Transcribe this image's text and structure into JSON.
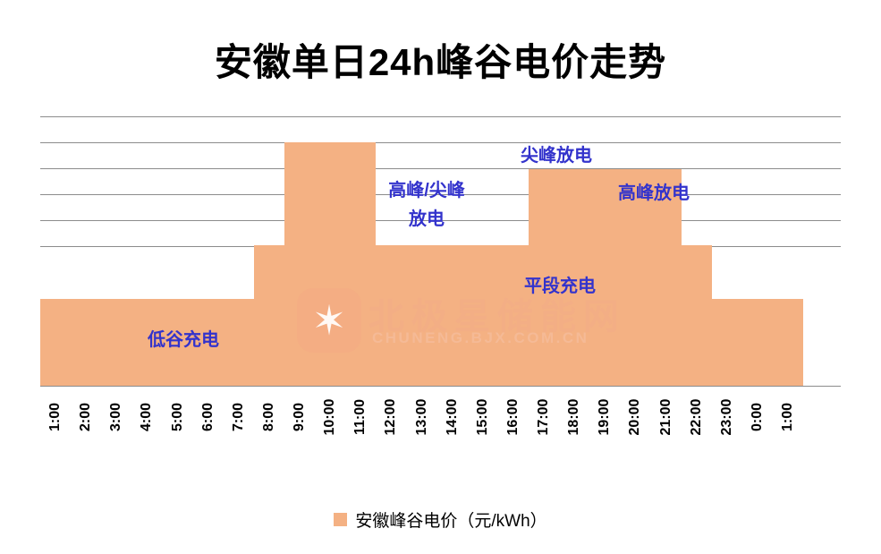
{
  "title": "安徽单日24h峰谷电价走势",
  "legend": {
    "label": "安徽峰谷电价（元/kWh）",
    "swatch_color": "#F4B183"
  },
  "watermark": {
    "name": "北极星储能网",
    "url": "CHUNENG.BJX.COM.CN",
    "star": "✶"
  },
  "annotations": {
    "valley": "低谷充电",
    "peak_sharp_line1": "高峰/尖峰",
    "peak_sharp_line2": "放电",
    "sharp": "尖峰放电",
    "peak": "高峰放电",
    "flat": "平段充电"
  },
  "chart_data": {
    "type": "bar",
    "title": "安徽单日24h峰谷电价走势",
    "series_name": "安徽峰谷电价（元/kWh）",
    "categories": [
      "1:00",
      "2:00",
      "3:00",
      "4:00",
      "5:00",
      "6:00",
      "7:00",
      "8:00",
      "9:00",
      "10:00",
      "11:00",
      "12:00",
      "13:00",
      "14:00",
      "15:00",
      "16:00",
      "17:00",
      "18:00",
      "19:00",
      "20:00",
      "21:00",
      "22:00",
      "23:00",
      "0:00",
      "1:00"
    ],
    "values": [
      0.36,
      0.36,
      0.36,
      0.36,
      0.36,
      0.36,
      0.36,
      0.58,
      1.0,
      1.0,
      1.0,
      0.58,
      0.58,
      0.58,
      0.58,
      0.58,
      0.89,
      0.89,
      0.89,
      0.89,
      0.89,
      0.58,
      0.36,
      0.36,
      0.36
    ],
    "xlabel": "",
    "ylabel": "",
    "ylim": [
      0,
      1.1
    ],
    "y_axis_labels_visible": false,
    "grid": true,
    "legend_position": "bottom",
    "bar_color": "#F4B183",
    "annotation_color": "#3333CC",
    "annotations": [
      {
        "text": "低谷充电",
        "period": "1:00-7:00"
      },
      {
        "text": "高峰/尖峰放电",
        "period": "9:00-11:00"
      },
      {
        "text": "平段充电",
        "period": "12:00-16:00"
      },
      {
        "text": "尖峰放电",
        "period": "near 17:00"
      },
      {
        "text": "高峰放电",
        "period": "17:00-21:00"
      }
    ],
    "price_levels": {
      "低谷": 0.36,
      "平段": 0.58,
      "高峰": 0.89,
      "尖峰": 1.0
    },
    "note": "y-axis tick labels not visible in source; values are relative estimates from gridlines"
  }
}
